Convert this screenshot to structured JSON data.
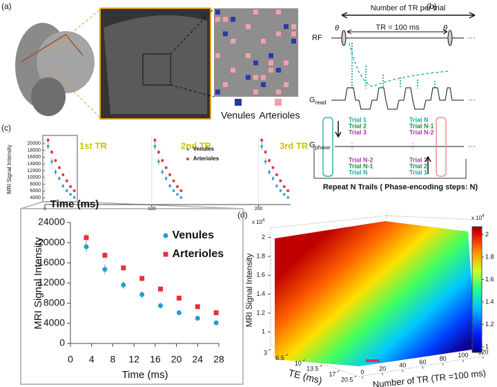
{
  "panel_labels": [
    "(a)",
    "(b)",
    "(c)",
    "(d)"
  ],
  "panel_a": {
    "legend": [
      "Venules",
      "Arterioles"
    ]
  },
  "panel_b": {
    "trial_span": "Number of TR per trial",
    "rf": "RF",
    "flip": "θ",
    "tr": "TR = 100 ms",
    "g_read": {
      "symbol": "G",
      "subscript": "read"
    },
    "g_phase": {
      "symbol": "G",
      "subscript": "phase"
    },
    "ellipsis": "···",
    "trials_left": [
      "Trial 1",
      "Trial 2",
      "Trial 3",
      "Trial N-2",
      "Trial N-1",
      "Trial N"
    ],
    "trials_right": [
      "Trial N",
      "Trial N-1",
      "Trial N-2",
      "Trial 3",
      "Trial 2",
      "Trial 1"
    ],
    "repeat": "Repeat N Trails ( Phase-encoding steps:  N)"
  },
  "chart_data": [
    {
      "type": "scatter",
      "xlabel": "Time (ms)",
      "ylabel": "MRI Signal Intensity",
      "xlim": [
        0,
        230
      ],
      "xticks": [
        0,
        100,
        200
      ],
      "ylim": [
        2000,
        22000
      ],
      "yticks": [
        4000,
        6000,
        8000,
        10000,
        12000,
        14000,
        16000,
        18000,
        20000
      ],
      "grid": "x",
      "legend": "upper right",
      "annotations": [
        "1st TR",
        "2nd TR",
        "3rd TR"
      ],
      "x": [
        3,
        6.5,
        10,
        13.5,
        17,
        20.5,
        24,
        27.5,
        103,
        106.5,
        110,
        113.5,
        117,
        120.5,
        124,
        127.5,
        203,
        206.5,
        210,
        213.5,
        217,
        220.5,
        224,
        227.5
      ],
      "series": [
        {
          "name": "Venules",
          "color": "#1f9fd6",
          "marker": "circle",
          "values": [
            19200,
            14700,
            11600,
            9700,
            7500,
            6100,
            5000,
            4100,
            19200,
            14700,
            11600,
            9700,
            7500,
            6100,
            5000,
            4100,
            19200,
            14700,
            11600,
            9700,
            7500,
            6100,
            5000,
            4100
          ],
          "errors": [
            1000,
            1000,
            800,
            700,
            600,
            500,
            400,
            400,
            1000,
            1000,
            800,
            700,
            600,
            500,
            400,
            400,
            1000,
            1000,
            800,
            700,
            600,
            500,
            400,
            400
          ]
        },
        {
          "name": "Arterioles",
          "color": "#e8303c",
          "marker": "square",
          "values": [
            21000,
            17500,
            15000,
            12900,
            10800,
            9000,
            7300,
            6100,
            21000,
            17500,
            15000,
            12900,
            10800,
            9000,
            7300,
            6100,
            21000,
            17500,
            15000,
            12900,
            10800,
            9000,
            7300,
            6100
          ],
          "errors": [
            800,
            600,
            500,
            400,
            400,
            400,
            300,
            300,
            800,
            600,
            500,
            400,
            400,
            400,
            300,
            300,
            800,
            600,
            500,
            400,
            400,
            400,
            300,
            300
          ]
        }
      ]
    },
    {
      "type": "scatter",
      "xlabel": "Time (ms)",
      "ylabel": "MRI Signal Intensity",
      "xlim": [
        0,
        28
      ],
      "xticks": [
        0,
        4,
        8,
        12,
        16,
        20,
        24,
        28
      ],
      "ylim": [
        0,
        24000
      ],
      "yticks": [
        0,
        4000,
        8000,
        12000,
        16000,
        20000,
        24000
      ],
      "grid": false,
      "legend": "upper right",
      "x": [
        3,
        6.5,
        10,
        13.5,
        17,
        20.5,
        24,
        27.5
      ],
      "series": [
        {
          "name": "Venules",
          "color": "#1f9fd6",
          "marker": "circle",
          "values": [
            19200,
            14700,
            11600,
            9700,
            7500,
            6100,
            5000,
            4100
          ],
          "errors": [
            1000,
            1000,
            800,
            700,
            600,
            500,
            400,
            400
          ]
        },
        {
          "name": "Arterioles",
          "color": "#e8303c",
          "marker": "square",
          "values": [
            21000,
            17500,
            15000,
            12900,
            10800,
            9000,
            7300,
            6100
          ],
          "errors": [
            800,
            600,
            500,
            400,
            400,
            400,
            300,
            300
          ]
        }
      ]
    },
    {
      "type": "surface",
      "xlabel": "TE (ms)",
      "ylabel": "Number of TR (TR =100 ms)",
      "zlabel": "MRI Signal Intensity",
      "xlim": [
        3,
        21
      ],
      "xticks": [
        3,
        6.5,
        10,
        13.5,
        17,
        20.5
      ],
      "ylim": [
        0,
        120
      ],
      "yticks": [
        0,
        20,
        40,
        60,
        80,
        100,
        120
      ],
      "zlim": [
        0.9,
        2.1
      ],
      "zticks": [
        1,
        1.2,
        1.4,
        1.6,
        1.8,
        2
      ],
      "exponent": {
        "base": "x 10",
        "power": "4"
      },
      "colormap": "jet",
      "clim": [
        0.95,
        2.07
      ],
      "cticks": [
        1,
        1.2,
        1.4,
        1.6,
        1.8,
        2
      ]
    }
  ]
}
